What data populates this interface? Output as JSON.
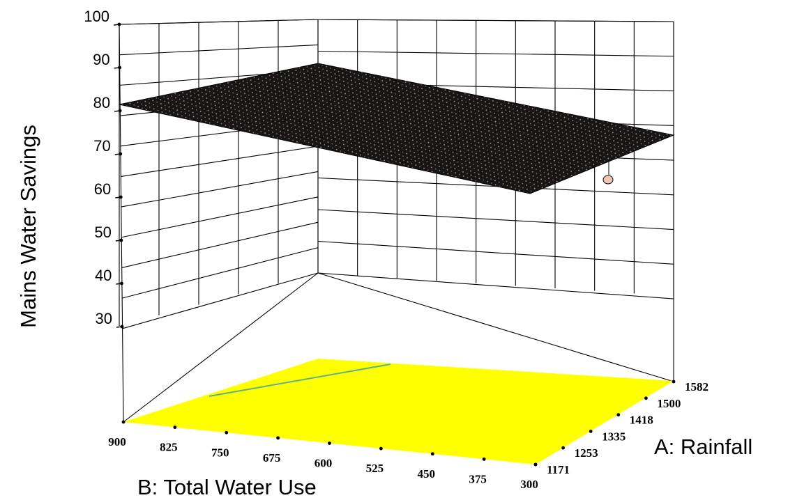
{
  "chart_data": {
    "type": "surface",
    "zlabel": "Mains Water Savings",
    "xlabel": "B: Total Water Use",
    "ylabel": "A: Rainfall",
    "z_ticks": [
      "30",
      "40",
      "50",
      "60",
      "70",
      "80",
      "90",
      "100"
    ],
    "zlim": [
      30,
      100
    ],
    "b_ticks": [
      "900",
      "825",
      "750",
      "675",
      "600",
      "525",
      "450",
      "375",
      "300"
    ],
    "a_ticks": [
      "1171",
      "1253",
      "1335",
      "1418",
      "1500",
      "1582"
    ],
    "xlim": [
      300,
      900
    ],
    "ylim": [
      1171,
      1582
    ],
    "surface_corners": [
      {
        "B": 900,
        "A": 1171,
        "z": 80
      },
      {
        "B": 900,
        "A": 1582,
        "z": 90
      },
      {
        "B": 300,
        "A": 1582,
        "z": 73
      },
      {
        "B": 300,
        "A": 1171,
        "z": 62
      }
    ],
    "design_point": {
      "B": 300,
      "A": 1582,
      "z": 62
    },
    "colors": {
      "surface": "#161616",
      "surface_mesh": "#c89a8c",
      "floor": "#ffff00",
      "contour": "#5fb08a",
      "point": "#f2c4b4"
    }
  }
}
